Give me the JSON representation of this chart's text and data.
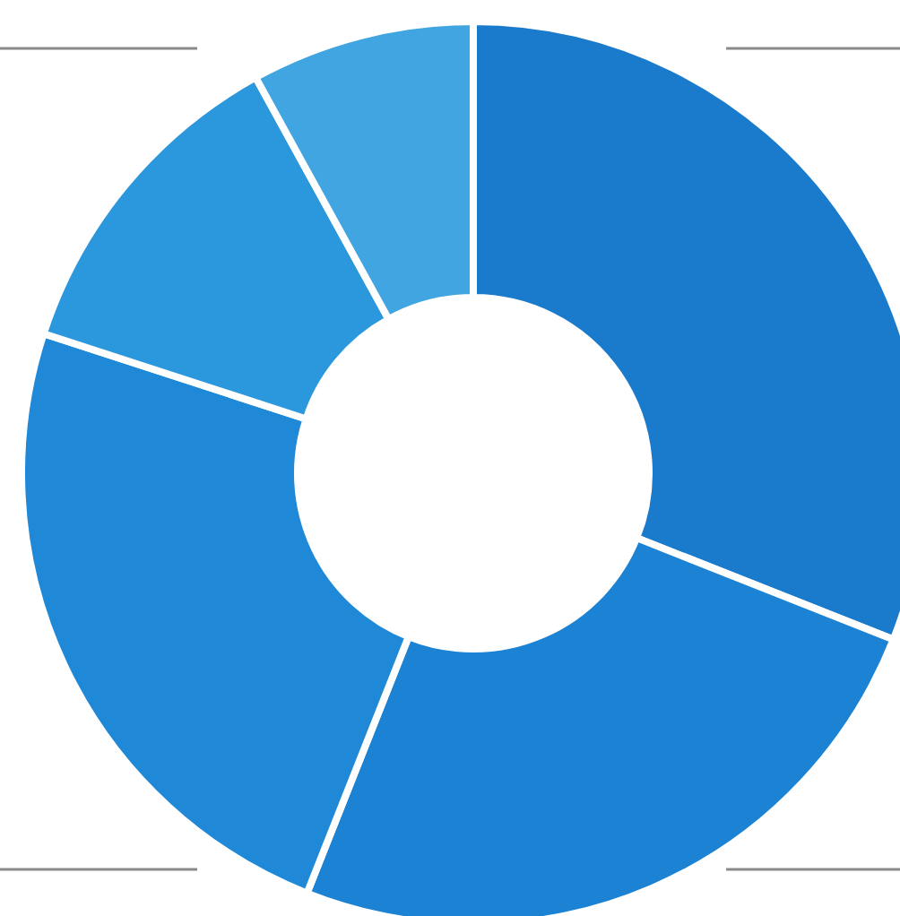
{
  "chart_data": {
    "type": "donut",
    "categories": [
      null,
      null,
      null,
      null,
      null
    ],
    "values": [
      31,
      25,
      24,
      12,
      8
    ],
    "colors": [
      "#1a7acb",
      "#1b82d4",
      "#1f89d8",
      "#2b97dc",
      "#40a5e0"
    ]
  }
}
